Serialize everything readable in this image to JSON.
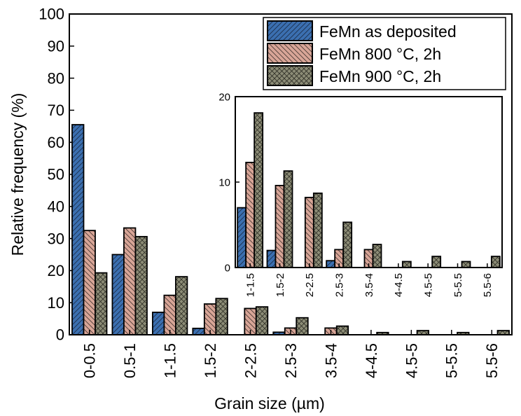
{
  "chart_data": [
    {
      "type": "bar",
      "xlabel": "Grain size (µm)",
      "ylabel": "Relative frequency (%)",
      "ylim": [
        0,
        100
      ],
      "yticks": [
        0,
        10,
        20,
        30,
        40,
        50,
        60,
        70,
        80,
        90,
        100
      ],
      "categories": [
        "0-0.5",
        "0.5-1",
        "1-1.5",
        "1.5-2",
        "2-2.5",
        "2.5-3",
        "3.5-4",
        "4-4.5",
        "4.5-5",
        "5-5.5",
        "5.5-6"
      ],
      "series": [
        {
          "name": "FeMn as deposited",
          "color": "#3b6fb0",
          "pattern": "diagonal-hatch",
          "values": [
            65.5,
            25,
            7,
            2,
            0,
            0.8,
            0,
            0,
            0,
            0,
            0
          ]
        },
        {
          "name": "FeMn 800 °C, 2h",
          "color": "#d8a597",
          "pattern": "diagonal-hatch-reverse",
          "values": [
            32.5,
            33.3,
            12.3,
            9.6,
            8.2,
            2.1,
            2.1,
            0,
            0,
            0,
            0
          ]
        },
        {
          "name": "FeMn 900 °C, 2h",
          "color": "#8c8c76",
          "pattern": "cross-hatch",
          "values": [
            19.3,
            30.6,
            18.1,
            11.3,
            8.7,
            5.3,
            2.7,
            0.7,
            1.3,
            0.7,
            1.3
          ]
        }
      ],
      "legend": {
        "position": "top-right"
      },
      "grid": false
    },
    {
      "type": "bar",
      "role": "inset",
      "ylim": [
        0,
        20
      ],
      "yticks": [
        0,
        10,
        20
      ],
      "categories": [
        "1-1.5",
        "1.5-2",
        "2-2.5",
        "2.5-3",
        "3.5-4",
        "4-4.5",
        "4.5-5",
        "5-5.5",
        "5.5-6"
      ],
      "series": [
        {
          "name": "FeMn as deposited",
          "values": [
            7,
            2,
            0,
            0.8,
            0,
            0,
            0,
            0,
            0
          ]
        },
        {
          "name": "FeMn 800 °C, 2h",
          "values": [
            12.3,
            9.6,
            8.2,
            2.1,
            2.1,
            0,
            0,
            0,
            0
          ]
        },
        {
          "name": "FeMn 900 °C, 2h",
          "values": [
            18.1,
            11.3,
            8.7,
            5.3,
            2.7,
            0.7,
            1.3,
            0.7,
            1.3
          ]
        }
      ],
      "grid": false
    }
  ]
}
